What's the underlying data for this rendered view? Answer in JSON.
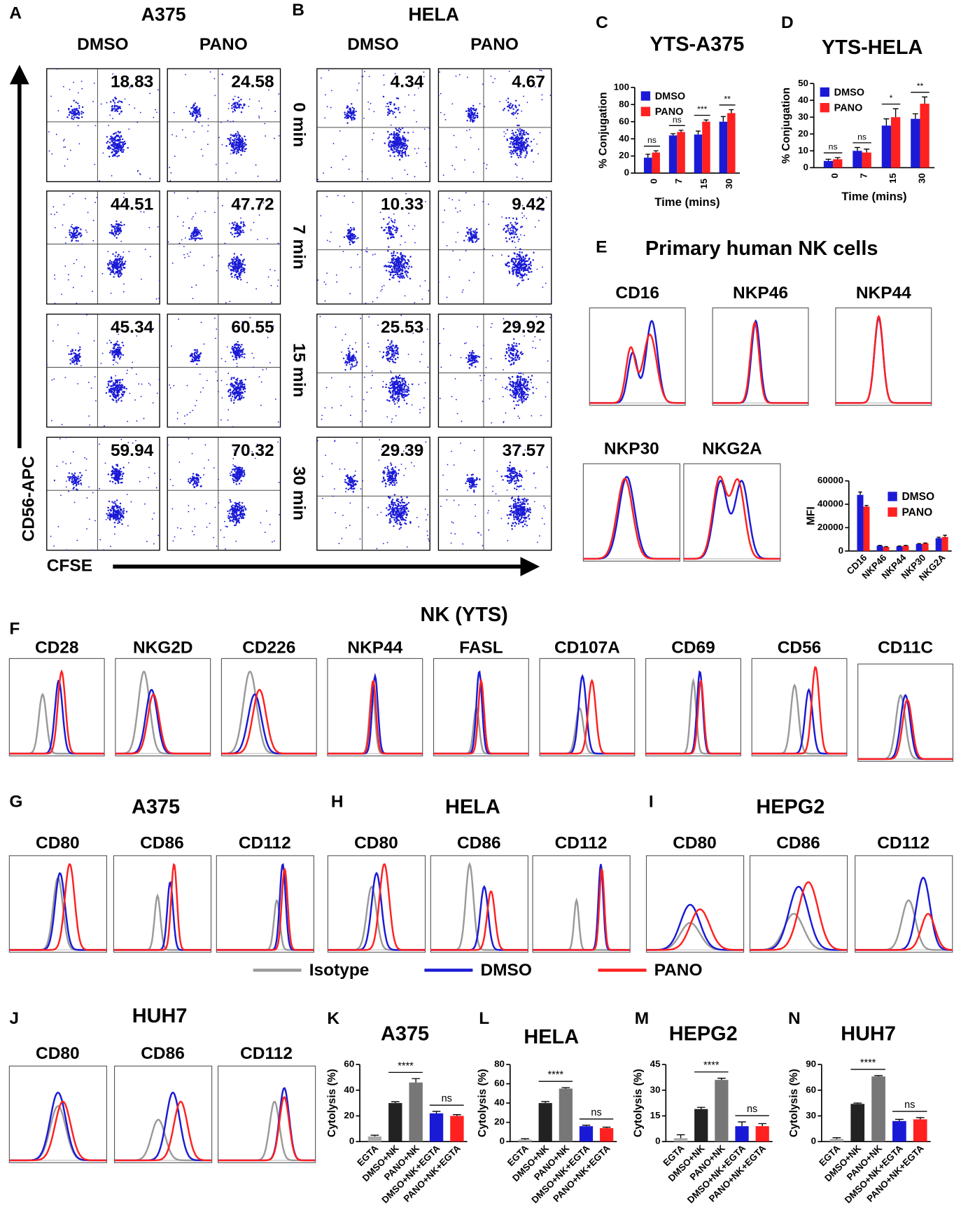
{
  "figure": {
    "panel_labels": [
      "A",
      "B",
      "C",
      "D",
      "E",
      "F",
      "G",
      "H",
      "I",
      "J",
      "K",
      "L",
      "M",
      "N"
    ],
    "flow": {
      "groups": [
        {
          "title": "A375",
          "columns": [
            "DMSO",
            "PANO"
          ],
          "values": [
            [
              18.83,
              24.58
            ],
            [
              44.51,
              47.72
            ],
            [
              45.34,
              60.55
            ],
            [
              59.94,
              70.32
            ]
          ]
        },
        {
          "title": "HELA",
          "columns": [
            "DMSO",
            "PANO"
          ],
          "values": [
            [
              4.34,
              4.67
            ],
            [
              10.33,
              9.42
            ],
            [
              25.53,
              29.92
            ],
            [
              29.39,
              37.57
            ]
          ]
        }
      ],
      "rows": [
        "0 min",
        "7 min",
        "15 min",
        "30 min"
      ],
      "y_axis_label": "CD56-APC",
      "x_axis_label": "CFSE"
    },
    "primary_nk": {
      "title": "Primary human NK cells",
      "markers": [
        "CD16",
        "NKP46",
        "NKP44",
        "NKP30",
        "NKG2A"
      ]
    },
    "yts": {
      "title": "NK (YTS)",
      "markers": [
        "CD28",
        "NKG2D",
        "CD226",
        "NKP44",
        "FASL",
        "CD107A",
        "CD69",
        "CD56",
        "CD11C"
      ]
    },
    "ligands": [
      {
        "title": "A375",
        "markers": [
          "CD80",
          "CD86",
          "CD112"
        ]
      },
      {
        "title": "HELA",
        "markers": [
          "CD80",
          "CD86",
          "CD112"
        ]
      },
      {
        "title": "HEPG2",
        "markers": [
          "CD80",
          "CD86",
          "CD112"
        ]
      },
      {
        "title": "HUH7",
        "markers": [
          "CD80",
          "CD86",
          "CD112"
        ]
      }
    ],
    "legend": [
      {
        "name": "Isotype",
        "color": "#9a9a9a"
      },
      {
        "name": "DMSO",
        "color": "#1a1ad6"
      },
      {
        "name": "PANO",
        "color": "#ff2020"
      }
    ]
  },
  "chart_data": [
    {
      "type": "bar",
      "title": "YTS-A375",
      "categories": [
        "0",
        "7",
        "15",
        "30"
      ],
      "series": [
        {
          "name": "DMSO",
          "color": "#1a1ad6",
          "values": [
            18,
            44,
            45,
            60
          ],
          "errors": [
            4,
            2,
            4,
            6
          ]
        },
        {
          "name": "PANO",
          "color": "#ff2020",
          "values": [
            24,
            48,
            60,
            70
          ],
          "errors": [
            2,
            2,
            2,
            4
          ]
        }
      ],
      "ylim": [
        0,
        100
      ],
      "yticks": [
        0,
        20,
        40,
        60,
        80,
        100
      ],
      "y_label": "% Conjugation",
      "x_label": "Time (mins)",
      "annotations": [
        "ns",
        "ns",
        "***",
        "**"
      ],
      "legend": "upper left"
    },
    {
      "type": "bar",
      "title": "YTS-HELA",
      "categories": [
        "0",
        "7",
        "15",
        "30"
      ],
      "series": [
        {
          "name": "DMSO",
          "color": "#1a1ad6",
          "values": [
            4,
            10,
            25,
            29
          ],
          "errors": [
            1,
            2,
            4,
            3
          ]
        },
        {
          "name": "PANO",
          "color": "#ff2020",
          "values": [
            5,
            9,
            30,
            38
          ],
          "errors": [
            1,
            2,
            5,
            4
          ]
        }
      ],
      "ylim": [
        0,
        50
      ],
      "yticks": [
        0,
        10,
        20,
        30,
        40,
        50
      ],
      "y_label": "% Conjugation",
      "x_label": "Time (mins)",
      "annotations": [
        "ns",
        "ns",
        "*",
        "**"
      ],
      "legend": "upper left"
    },
    {
      "type": "bar",
      "categories": [
        "CD16",
        "NKP46",
        "NKP44",
        "NKP30",
        "NKG2A"
      ],
      "series": [
        {
          "name": "DMSO",
          "color": "#1a1ad6",
          "values": [
            48000,
            4500,
            4000,
            6000,
            11000
          ],
          "errors": [
            2500,
            300,
            300,
            300,
            800
          ]
        },
        {
          "name": "PANO",
          "color": "#ff2020",
          "values": [
            38000,
            3500,
            4500,
            6500,
            12000
          ],
          "errors": [
            1000,
            300,
            300,
            300,
            1500
          ]
        }
      ],
      "ylim": [
        0,
        60000
      ],
      "yticks": [
        0,
        20000,
        40000,
        60000
      ],
      "y_label": "MFI",
      "legend": "upper right"
    },
    {
      "type": "bar",
      "title": "A375",
      "categories": [
        "EGTA",
        "DMSO+NK",
        "PANO+NK",
        "DMSO+NK+EGTA",
        "PANO+NK+EGTA"
      ],
      "values": [
        4,
        30,
        46,
        22,
        20
      ],
      "errors": [
        1,
        1,
        3,
        1.5,
        1
      ],
      "colors": [
        "#aaaaaa",
        "#222222",
        "#777777",
        "#1a1ad6",
        "#ff2020"
      ],
      "ylim": [
        0,
        60
      ],
      "yticks": [
        0,
        20,
        40,
        60
      ],
      "y_label": "Cytolysis (%)",
      "annotations": [
        "****",
        "ns"
      ]
    },
    {
      "type": "bar",
      "title": "HELA",
      "categories": [
        "EGTA",
        "DMSO+NK",
        "PANO+NK",
        "DMSO+NK+EGTA",
        "PANO+NK+EGTA"
      ],
      "values": [
        2,
        40,
        55,
        16,
        14
      ],
      "errors": [
        1,
        1.5,
        1,
        1,
        1
      ],
      "colors": [
        "#aaaaaa",
        "#222222",
        "#777777",
        "#1a1ad6",
        "#ff2020"
      ],
      "ylim": [
        0,
        80
      ],
      "yticks": [
        0,
        20,
        40,
        60,
        80
      ],
      "y_label": "Cytolysis (%)",
      "annotations": [
        "****",
        "ns"
      ]
    },
    {
      "type": "bar",
      "title": "HEPG2",
      "categories": [
        "EGTA",
        "DMSO+NK",
        "PANO+NK",
        "DMSO+NK+EGTA",
        "PANO+NK+EGTA"
      ],
      "values": [
        2,
        19,
        36,
        9,
        9
      ],
      "errors": [
        2,
        1,
        1,
        2.5,
        1.5
      ],
      "colors": [
        "#aaaaaa",
        "#222222",
        "#777777",
        "#1a1ad6",
        "#ff2020"
      ],
      "ylim": [
        0,
        45
      ],
      "yticks": [
        0,
        15,
        30,
        45
      ],
      "y_label": "Cytolysis (%)",
      "annotations": [
        "****",
        "ns"
      ]
    },
    {
      "type": "bar",
      "title": "HUH7",
      "categories": [
        "EGTA",
        "DMSO+NK",
        "PANO+NK",
        "DMSO+NK+EGTA",
        "PANO+NK+EGTA"
      ],
      "values": [
        3,
        44,
        76,
        24,
        26
      ],
      "errors": [
        1.5,
        1,
        1,
        2,
        2
      ],
      "colors": [
        "#aaaaaa",
        "#222222",
        "#777777",
        "#1a1ad6",
        "#ff2020"
      ],
      "ylim": [
        0,
        90
      ],
      "yticks": [
        0,
        30,
        60,
        90
      ],
      "y_label": "Cytolysis (%)",
      "annotations": [
        "****",
        "ns"
      ]
    }
  ]
}
